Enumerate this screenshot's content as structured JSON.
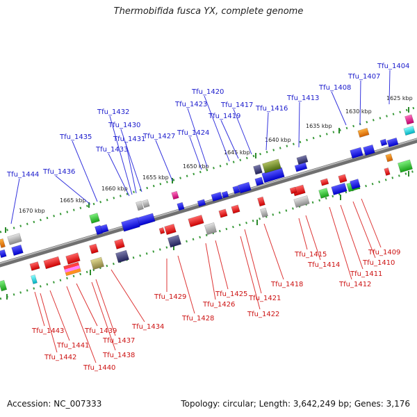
{
  "title": "Thermobifida fusca YX, complete genome",
  "footer": {
    "accession": "Accession: NC_007333",
    "summary": "Topology: circular; Length: 3,642,249 bp; Genes: 3,176"
  },
  "scale_labels": [
    "1625 kbp",
    "1630 kbp",
    "1635 kbp",
    "1640 kbp",
    "1645 kbp",
    "1650 kbp",
    "1655 kbp",
    "1660 kbp",
    "1665 kbp",
    "1670 kbp"
  ],
  "upper_gene_labels": [
    "Tfu_1404",
    "Tfu_1407",
    "Tfu_1408",
    "Tfu_1413",
    "Tfu_1416",
    "Tfu_1417",
    "Tfu_1419",
    "Tfu_1420",
    "Tfu_1423",
    "Tfu_1424",
    "Tfu_1427",
    "Tfu_1430",
    "Tfu_1431",
    "Tfu_1432",
    "Tfu_1433",
    "Tfu_1435",
    "Tfu_1436",
    "Tfu_1444"
  ],
  "lower_gene_labels": [
    "Tfu_1409",
    "Tfu_1410",
    "Tfu_1411",
    "Tfu_1412",
    "Tfu_1414",
    "Tfu_1415",
    "Tfu_1418",
    "Tfu_1421",
    "Tfu_1422",
    "Tfu_1425",
    "Tfu_1426",
    "Tfu_1428",
    "Tfu_1429",
    "Tfu_1434",
    "Tfu_1437",
    "Tfu_1438",
    "Tfu_1439",
    "Tfu_1440",
    "Tfu_1441",
    "Tfu_1442",
    "Tfu_1443"
  ],
  "colors": {
    "upper_labels": "#1a1acc",
    "lower_labels": "#cc1111",
    "backbone": "#8a8a8a",
    "ticks": "#2a8a2a",
    "forward_genes": "#1a1aee",
    "reverse_genes": "#ee1111"
  }
}
